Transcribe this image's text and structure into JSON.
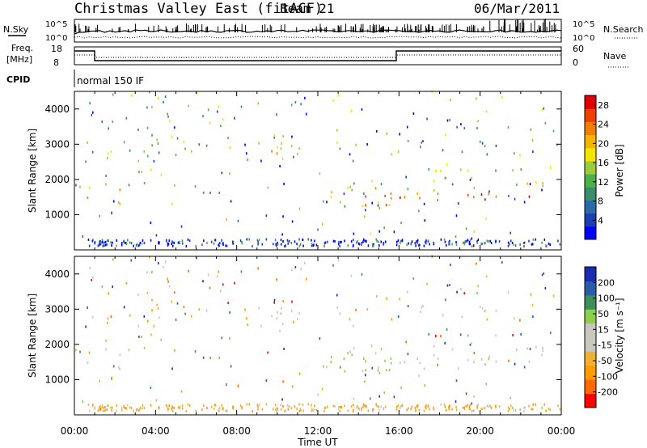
{
  "header": {
    "station": "Christmas Valley East (fitACF)",
    "beam": "Beam 21",
    "date": "06/Mar/2011"
  },
  "strip1": {
    "left_label": "N.Sky",
    "right_label": "N.Search",
    "yticks_left": [
      "10^5",
      "10^0"
    ],
    "yticks_right": [
      "10^5",
      "10^0"
    ]
  },
  "strip2": {
    "left_label_1": "Freq.",
    "left_label_2": "[MHz]",
    "right_label": "Nave",
    "yticks_left": [
      "18",
      "8"
    ],
    "yticks_right": [
      "60",
      "0"
    ]
  },
  "cpid": {
    "label": "CPID",
    "value": "normal 150 IF"
  },
  "colors": {
    "power_scale": [
      "#0000ff",
      "#1a3fb0",
      "#2a6aa8",
      "#3a8f6a",
      "#4fb04a",
      "#9ccc3c",
      "#f2e600",
      "#f5b400",
      "#f08000",
      "#f04000",
      "#e00000"
    ],
    "velocity_scale": [
      "#ff0000",
      "#ff6a00",
      "#ff9a00",
      "#f0b030",
      "#c8c8c0",
      "#c8c8c0",
      "#8ccf4a",
      "#3c8f5a",
      "#2a5ca8",
      "#1a2bb0"
    ],
    "velocity_gray": "#c8c8c0"
  },
  "chart_data": [
    {
      "type": "heatmap",
      "name": "Power",
      "ylabel": "Slant Range [km]",
      "yticks": [
        1000,
        2000,
        3000,
        4000
      ],
      "ylim": [
        0,
        4500
      ],
      "colorbar_label": "Power [dB]",
      "colorbar_ticks": [
        "4",
        "8",
        "12",
        "16",
        "20",
        "24",
        "28"
      ],
      "colorbar_range": [
        0,
        30
      ]
    },
    {
      "type": "heatmap",
      "name": "Velocity",
      "ylabel": "Slant Range [km]",
      "yticks": [
        1000,
        2000,
        3000,
        4000
      ],
      "ylim": [
        0,
        4500
      ],
      "colorbar_label": "Velocity [m s⁻¹]",
      "colorbar_ticks": [
        "200",
        "100",
        "50",
        "15",
        "-15",
        "-50",
        "-100",
        "-200"
      ]
    }
  ],
  "time_axis": {
    "xlabel": "Time UT",
    "tick_labels": [
      "00:00",
      "04:00",
      "08:00",
      "12:00",
      "16:00",
      "20:00",
      "00:00"
    ],
    "range_hours": [
      0,
      24
    ]
  },
  "scatter_bands": [
    {
      "t": [
        0.0,
        0.9
      ],
      "r": [
        1450,
        1650
      ],
      "pc": 9,
      "vc": "gray"
    },
    {
      "t": [
        0.0,
        0.9
      ],
      "r": [
        1700,
        2300
      ],
      "pc": 6,
      "vc": "mix"
    },
    {
      "t": [
        0.1,
        0.9
      ],
      "r": [
        2500,
        3300
      ],
      "pc": 4,
      "vc": "mix"
    },
    {
      "t": [
        0.2,
        1.0
      ],
      "r": [
        3500,
        4400
      ],
      "pc": 2,
      "vc": "mix"
    },
    {
      "t": [
        1.0,
        1.2
      ],
      "r": [
        1000,
        1400
      ],
      "pc": 9,
      "vc": "gray"
    },
    {
      "t": [
        1.2,
        3.0
      ],
      "r": [
        1300,
        1800
      ],
      "pc": 7,
      "vc": "gray"
    },
    {
      "t": [
        1.5,
        4.6
      ],
      "r": [
        1800,
        3200
      ],
      "pc": 5,
      "vc": "orange"
    },
    {
      "t": [
        1.3,
        3.0
      ],
      "r": [
        3000,
        3700
      ],
      "pc": 4,
      "vc": "mix"
    },
    {
      "t": [
        2.5,
        3.5
      ],
      "r": [
        3200,
        3800
      ],
      "pc": 3,
      "vc": "mix"
    },
    {
      "t": [
        3.5,
        4.6
      ],
      "r": [
        2300,
        4200
      ],
      "pc": 3,
      "vc": "orange"
    },
    {
      "t": [
        7.0,
        7.4
      ],
      "r": [
        3300,
        3900
      ],
      "pc": 3,
      "vc": "gray"
    },
    {
      "t": [
        8.0,
        14.0
      ],
      "r": [
        2500,
        3100
      ],
      "pc": 5,
      "vc": "gray"
    },
    {
      "t": [
        9.5,
        11.5
      ],
      "r": [
        2600,
        2900
      ],
      "pc": 7,
      "vc": "gray"
    },
    {
      "t": [
        9.8,
        11.2
      ],
      "r": [
        4100,
        4500
      ],
      "pc": 5,
      "vc": "gray"
    },
    {
      "t": [
        12.5,
        15.9
      ],
      "r": [
        900,
        1800
      ],
      "pc": 8,
      "vc": "green"
    },
    {
      "t": [
        13.0,
        16.0
      ],
      "r": [
        1200,
        2000
      ],
      "pc": 5,
      "vc": "green"
    },
    {
      "t": [
        16.0,
        24.0
      ],
      "r": [
        1350,
        1650
      ],
      "pc": 9,
      "vc": "gray"
    },
    {
      "t": [
        16.0,
        24.0
      ],
      "r": [
        1650,
        2050
      ],
      "pc": 6,
      "vc": "gray"
    },
    {
      "t": [
        16.0,
        24.0
      ],
      "r": [
        2050,
        2300
      ],
      "pc": 5,
      "vc": "mix"
    },
    {
      "t": [
        16.0,
        24.0
      ],
      "r": [
        2700,
        3100
      ],
      "pc": 3,
      "vc": "gray"
    },
    {
      "t": [
        22.0,
        24.0
      ],
      "r": [
        2900,
        3500
      ],
      "pc": 4,
      "vc": "orange"
    }
  ],
  "sparse_noise": {
    "t": [
      0,
      24
    ],
    "r": [
      100,
      4500
    ],
    "count": 180
  },
  "ground_scatter": {
    "t": [
      0.5,
      24
    ],
    "r": [
      100,
      300
    ],
    "count": 260
  }
}
